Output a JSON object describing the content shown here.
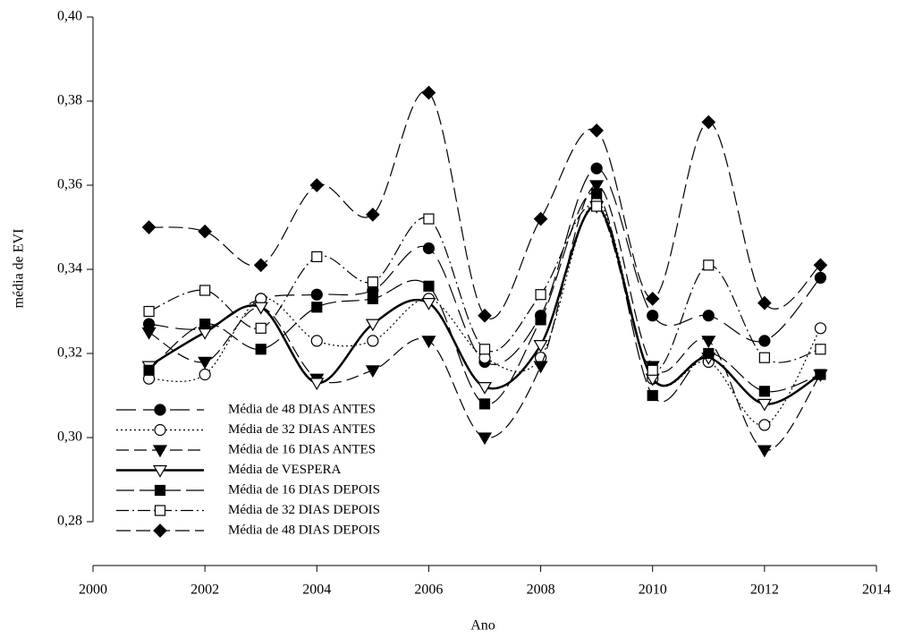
{
  "chart_data": {
    "type": "line",
    "x_label": "Ano",
    "y_label": "média de EVI",
    "x": [
      2001,
      2002,
      2003,
      2004,
      2005,
      2006,
      2007,
      2008,
      2009,
      2010,
      2011,
      2012,
      2013
    ],
    "xlim": [
      2000,
      2014
    ],
    "xticks": [
      2000,
      2002,
      2004,
      2006,
      2008,
      2010,
      2012,
      2014
    ],
    "ylim": [
      0.28,
      0.4
    ],
    "yticks": [
      {
        "value": 0.28,
        "label": "0,28"
      },
      {
        "value": 0.3,
        "label": "0,30"
      },
      {
        "value": 0.32,
        "label": "0,32"
      },
      {
        "value": 0.34,
        "label": "0,34"
      },
      {
        "value": 0.36,
        "label": "0,36"
      },
      {
        "value": 0.38,
        "label": "0,38"
      },
      {
        "value": 0.4,
        "label": "0,40"
      }
    ],
    "legend": "lower left",
    "smooth": true,
    "series": [
      {
        "name": "Média de 48 DIAS ANTES",
        "color": "#000000",
        "marker": "circle",
        "filled": true,
        "dash": "22,8",
        "values": [
          0.327,
          0.326,
          0.333,
          0.334,
          0.335,
          0.345,
          0.318,
          0.329,
          0.364,
          0.329,
          0.329,
          0.323,
          0.338
        ]
      },
      {
        "name": "Média de 32 DIAS ANTES",
        "color": "#000000",
        "marker": "circle",
        "filled": false,
        "dash": "2,3",
        "values": [
          0.314,
          0.315,
          0.333,
          0.323,
          0.323,
          0.333,
          0.319,
          0.319,
          0.356,
          0.314,
          0.318,
          0.303,
          0.326
        ]
      },
      {
        "name": "Média de 16 DIAS ANTES",
        "color": "#000000",
        "marker": "triangle-down",
        "filled": true,
        "dash": "14,6",
        "values": [
          0.325,
          0.318,
          0.331,
          0.314,
          0.316,
          0.323,
          0.3,
          0.317,
          0.36,
          0.317,
          0.323,
          0.297,
          0.315
        ]
      },
      {
        "name": "Média de VESPERA",
        "color": "#000000",
        "marker": "triangle-down",
        "filled": false,
        "dash": "none",
        "width": 2.5,
        "values": [
          0.317,
          0.325,
          0.331,
          0.313,
          0.327,
          0.332,
          0.312,
          0.322,
          0.355,
          0.314,
          0.319,
          0.308,
          0.315
        ]
      },
      {
        "name": "Média de 16 DIAS DEPOIS",
        "color": "#000000",
        "marker": "square",
        "filled": true,
        "dash": "20,6",
        "values": [
          0.316,
          0.327,
          0.321,
          0.331,
          0.333,
          0.336,
          0.308,
          0.328,
          0.358,
          0.31,
          0.32,
          0.311,
          0.315
        ]
      },
      {
        "name": "Média de 32 DIAS DEPOIS",
        "color": "#000000",
        "marker": "square",
        "filled": false,
        "dash": "14,4,2,4",
        "values": [
          0.33,
          0.335,
          0.326,
          0.343,
          0.337,
          0.352,
          0.321,
          0.334,
          0.355,
          0.316,
          0.341,
          0.319,
          0.321
        ]
      },
      {
        "name": "Média de 48 DIAS DEPOIS",
        "color": "#000000",
        "marker": "diamond",
        "filled": true,
        "dash": "16,6",
        "values": [
          0.35,
          0.349,
          0.341,
          0.36,
          0.353,
          0.382,
          0.329,
          0.352,
          0.373,
          0.333,
          0.375,
          0.332,
          0.341
        ]
      }
    ]
  }
}
